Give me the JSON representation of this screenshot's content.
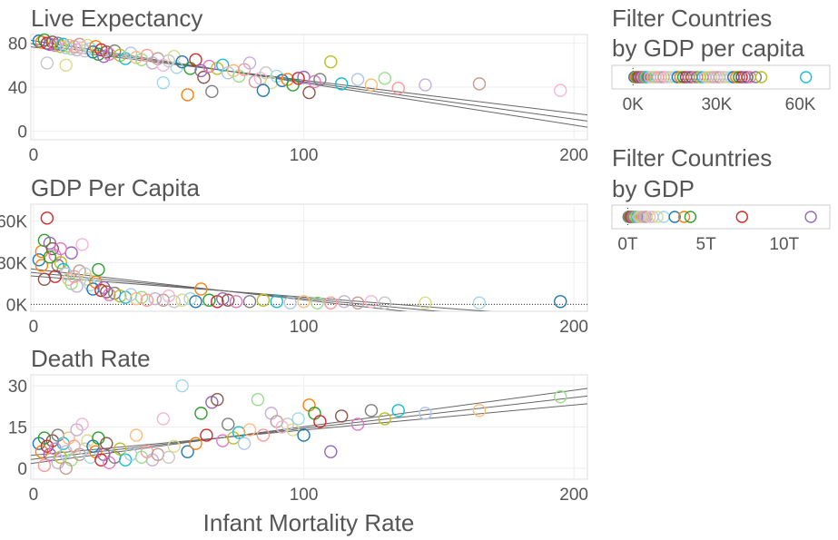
{
  "palette": [
    "#1f77b4",
    "#ff7f0e",
    "#2ca02c",
    "#d62728",
    "#9467bd",
    "#8c564b",
    "#e377c2",
    "#7f7f7f",
    "#bcbd22",
    "#17becf",
    "#aec7e8",
    "#ffbb78",
    "#98df8a",
    "#ff9896",
    "#c5b0d5",
    "#c49c94",
    "#f7b6d2",
    "#c7c7c7",
    "#dbdb8d",
    "#9edae5"
  ],
  "chart_data": [
    {
      "id": "life",
      "type": "scatter",
      "title": "Live Expectancy",
      "xlabel": "",
      "ylabel": "",
      "xlim": [
        -1,
        205
      ],
      "ylim": [
        -8,
        88
      ],
      "xticks": [
        0,
        100,
        200
      ],
      "xtick_labels": [
        "0",
        "100",
        "200"
      ],
      "yticks": [
        0,
        40,
        80
      ],
      "ytick_labels": [
        "0",
        "40",
        "80"
      ],
      "grid": true,
      "fit": {
        "slope": -0.343,
        "intercept": 79.4,
        "ci": [
          3,
          0,
          -3
        ]
      },
      "points": [
        [
          2,
          82
        ],
        [
          3,
          81
        ],
        [
          4,
          83
        ],
        [
          5,
          80
        ],
        [
          6,
          79
        ],
        [
          7,
          81
        ],
        [
          8,
          78
        ],
        [
          9,
          80
        ],
        [
          10,
          77
        ],
        [
          11,
          79
        ],
        [
          12,
          76
        ],
        [
          13,
          78
        ],
        [
          14,
          75
        ],
        [
          15,
          77
        ],
        [
          16,
          74
        ],
        [
          17,
          79
        ],
        [
          18,
          76
        ],
        [
          19,
          73
        ],
        [
          20,
          78
        ],
        [
          21,
          75
        ],
        [
          22,
          72
        ],
        [
          23,
          77
        ],
        [
          24,
          70
        ],
        [
          25,
          74
        ],
        [
          26,
          68
        ],
        [
          27,
          72
        ],
        [
          28,
          70
        ],
        [
          30,
          73
        ],
        [
          32,
          69
        ],
        [
          34,
          66
        ],
        [
          36,
          71
        ],
        [
          38,
          67
        ],
        [
          40,
          65
        ],
        [
          42,
          69
        ],
        [
          44,
          62
        ],
        [
          46,
          66
        ],
        [
          48,
          60
        ],
        [
          50,
          64
        ],
        [
          52,
          68
        ],
        [
          53,
          58
        ],
        [
          55,
          63
        ],
        [
          57,
          33
        ],
        [
          58,
          57
        ],
        [
          60,
          65
        ],
        [
          62,
          55
        ],
        [
          63,
          49
        ],
        [
          65,
          59
        ],
        [
          66,
          36
        ],
        [
          68,
          57
        ],
        [
          70,
          60
        ],
        [
          72,
          53
        ],
        [
          74,
          55
        ],
        [
          76,
          50
        ],
        [
          78,
          56
        ],
        [
          80,
          62
        ],
        [
          82,
          45
        ],
        [
          84,
          48
        ],
        [
          86,
          53
        ],
        [
          88,
          44
        ],
        [
          90,
          50
        ],
        [
          92,
          46
        ],
        [
          94,
          47
        ],
        [
          96,
          42
        ],
        [
          98,
          48
        ],
        [
          100,
          49
        ],
        [
          102,
          35
        ],
        [
          104,
          45
        ],
        [
          106,
          47
        ],
        [
          110,
          63
        ],
        [
          114,
          43
        ],
        [
          120,
          47
        ],
        [
          125,
          42
        ],
        [
          130,
          48
        ],
        [
          135,
          39
        ],
        [
          145,
          42
        ],
        [
          165,
          43
        ],
        [
          195,
          37
        ],
        [
          5,
          62
        ],
        [
          12,
          60
        ],
        [
          48,
          44
        ],
        [
          85,
          37
        ]
      ]
    },
    {
      "id": "gdp",
      "type": "scatter",
      "title": "GDP Per Capita",
      "xlabel": "",
      "ylabel": "",
      "xlim": [
        -1,
        205
      ],
      "ylim": [
        -5,
        72
      ],
      "xticks": [
        0,
        100,
        200
      ],
      "xtick_labels": [
        "0",
        "100",
        "200"
      ],
      "yticks": [
        0,
        30,
        60
      ],
      "ytick_labels": [
        "0K",
        "30K",
        "60K"
      ],
      "zero_line": true,
      "grid": true,
      "fit": {
        "slope": -0.186,
        "intercept": 22.8,
        "ci": [
          2.5,
          0,
          -2.5
        ]
      },
      "points": [
        [
          2,
          32
        ],
        [
          3,
          38
        ],
        [
          4,
          46
        ],
        [
          5,
          62
        ],
        [
          6,
          44
        ],
        [
          7,
          40
        ],
        [
          8,
          35
        ],
        [
          9,
          28
        ],
        [
          10,
          30
        ],
        [
          11,
          25
        ],
        [
          12,
          22
        ],
        [
          13,
          18
        ],
        [
          14,
          15
        ],
        [
          15,
          20
        ],
        [
          16,
          13
        ],
        [
          17,
          24
        ],
        [
          18,
          43
        ],
        [
          19,
          22
        ],
        [
          20,
          18
        ],
        [
          21,
          14
        ],
        [
          22,
          11
        ],
        [
          23,
          16
        ],
        [
          24,
          25
        ],
        [
          25,
          10
        ],
        [
          26,
          12
        ],
        [
          27,
          9
        ],
        [
          28,
          7
        ],
        [
          30,
          8
        ],
        [
          32,
          6
        ],
        [
          34,
          5
        ],
        [
          36,
          7
        ],
        [
          38,
          4
        ],
        [
          40,
          5
        ],
        [
          42,
          3
        ],
        [
          45,
          4
        ],
        [
          48,
          3
        ],
        [
          50,
          6
        ],
        [
          52,
          2
        ],
        [
          55,
          3
        ],
        [
          58,
          4
        ],
        [
          60,
          2
        ],
        [
          62,
          11
        ],
        [
          65,
          3
        ],
        [
          68,
          2
        ],
        [
          70,
          4
        ],
        [
          72,
          3
        ],
        [
          75,
          2
        ],
        [
          80,
          2
        ],
        [
          85,
          3
        ],
        [
          90,
          2
        ],
        [
          95,
          1
        ],
        [
          100,
          2
        ],
        [
          105,
          1
        ],
        [
          110,
          1
        ],
        [
          115,
          2
        ],
        [
          120,
          1
        ],
        [
          125,
          2
        ],
        [
          130,
          1
        ],
        [
          145,
          1
        ],
        [
          165,
          1
        ],
        [
          195,
          2
        ],
        [
          3,
          28
        ],
        [
          6,
          34
        ],
        [
          8,
          20
        ],
        [
          14,
          37
        ],
        [
          4,
          18
        ],
        [
          10,
          40
        ]
      ]
    },
    {
      "id": "death",
      "type": "scatter",
      "title": "Death Rate",
      "xlabel": "Infant Mortality Rate",
      "ylabel": "",
      "xlim": [
        -1,
        205
      ],
      "ylim": [
        -4,
        34
      ],
      "xticks": [
        0,
        100,
        200
      ],
      "xtick_labels": [
        "0",
        "100",
        "200"
      ],
      "yticks": [
        0,
        15,
        30
      ],
      "ytick_labels": [
        "0",
        "15",
        "30"
      ],
      "grid": true,
      "fit": {
        "slope": 0.112,
        "intercept": 3.3,
        "ci": [
          1.5,
          0,
          -1.5
        ]
      },
      "points": [
        [
          2,
          9
        ],
        [
          3,
          6
        ],
        [
          4,
          11
        ],
        [
          5,
          8
        ],
        [
          6,
          5
        ],
        [
          7,
          10
        ],
        [
          8,
          7
        ],
        [
          9,
          12
        ],
        [
          10,
          4
        ],
        [
          11,
          9
        ],
        [
          12,
          6
        ],
        [
          13,
          11
        ],
        [
          14,
          3
        ],
        [
          15,
          8
        ],
        [
          16,
          14
        ],
        [
          17,
          5
        ],
        [
          18,
          16
        ],
        [
          19,
          7
        ],
        [
          20,
          10
        ],
        [
          21,
          4
        ],
        [
          22,
          8
        ],
        [
          23,
          6
        ],
        [
          24,
          11
        ],
        [
          25,
          3
        ],
        [
          26,
          5
        ],
        [
          27,
          9
        ],
        [
          28,
          2
        ],
        [
          30,
          4
        ],
        [
          32,
          7
        ],
        [
          34,
          3
        ],
        [
          36,
          5
        ],
        [
          38,
          12
        ],
        [
          40,
          4
        ],
        [
          42,
          6
        ],
        [
          44,
          3
        ],
        [
          46,
          5
        ],
        [
          48,
          18
        ],
        [
          50,
          4
        ],
        [
          52,
          8
        ],
        [
          55,
          30
        ],
        [
          57,
          6
        ],
        [
          60,
          9
        ],
        [
          62,
          20
        ],
        [
          64,
          12
        ],
        [
          66,
          24
        ],
        [
          68,
          25
        ],
        [
          70,
          10
        ],
        [
          72,
          16
        ],
        [
          74,
          11
        ],
        [
          76,
          13
        ],
        [
          78,
          9
        ],
        [
          80,
          14
        ],
        [
          83,
          25
        ],
        [
          85,
          12
        ],
        [
          88,
          20
        ],
        [
          90,
          17
        ],
        [
          92,
          15
        ],
        [
          94,
          16
        ],
        [
          96,
          14
        ],
        [
          98,
          18
        ],
        [
          100,
          12
        ],
        [
          102,
          23
        ],
        [
          104,
          20
        ],
        [
          106,
          17
        ],
        [
          110,
          6
        ],
        [
          114,
          19
        ],
        [
          120,
          16
        ],
        [
          125,
          21
        ],
        [
          130,
          18
        ],
        [
          135,
          21
        ],
        [
          145,
          20
        ],
        [
          165,
          21
        ],
        [
          195,
          26
        ],
        [
          4,
          1
        ],
        [
          9,
          2
        ],
        [
          12,
          0
        ]
      ]
    }
  ],
  "filters": [
    {
      "id": "gdppc",
      "title_lines": [
        "Filter Countries",
        "by GDP per capita"
      ],
      "type": "strip",
      "xlim": [
        -3,
        66
      ],
      "xticks": [
        0,
        30,
        60
      ],
      "xtick_labels": [
        "0K",
        "30K",
        "60K"
      ],
      "values": [
        0.5,
        1,
        1.5,
        2,
        2.5,
        3,
        3.5,
        4,
        4.5,
        5,
        6,
        7,
        8,
        9,
        10,
        11,
        12,
        13,
        14,
        15,
        16,
        17,
        18,
        19,
        20,
        21,
        22,
        23,
        24,
        25,
        26,
        27,
        28,
        29,
        30,
        31,
        32,
        33,
        34,
        35,
        36,
        37,
        38,
        39,
        40,
        41,
        42,
        44,
        46,
        62
      ]
    },
    {
      "id": "gdp",
      "title_lines": [
        "Filter Countries",
        "by GDP"
      ],
      "type": "strip",
      "xlim": [
        -0.2,
        12.1
      ],
      "xticks": [
        0,
        5,
        10
      ],
      "xtick_labels": [
        "0T",
        "5T",
        "10T"
      ],
      "values": [
        0.05,
        0.1,
        0.15,
        0.2,
        0.25,
        0.3,
        0.35,
        0.4,
        0.5,
        0.6,
        0.7,
        0.8,
        0.9,
        1.0,
        1.1,
        1.2,
        1.4,
        1.6,
        1.9,
        2.3,
        3.0,
        3.6,
        4.0,
        7.3,
        11.7
      ]
    }
  ]
}
